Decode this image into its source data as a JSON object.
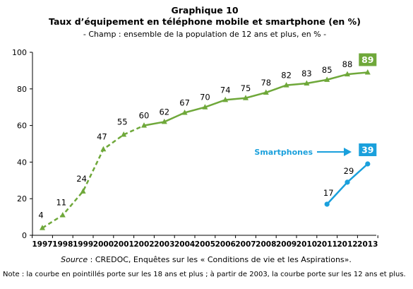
{
  "chart_data": {
    "type": "line",
    "title": "Graphique 10",
    "subtitle": "Taux d’équipement en téléphone mobile et smartphone (en %)",
    "scope": "- Champ : ensemble de la population de 12 ans et plus, en % -",
    "source_label": "Source",
    "source_text": " : CREDOC, Enquêtes sur les « Conditions de vie et les Aspirations».",
    "note": "Note : la courbe en pointillés porte sur les 18 ans et plus ; à partir de 2003, la courbe porte sur les 12 ans et plus.",
    "x": [
      "1997",
      "1998",
      "1999",
      "2000",
      "2001",
      "2002",
      "2003",
      "2004",
      "2005",
      "2006",
      "2007",
      "2008",
      "2009",
      "2010",
      "2011",
      "2012",
      "2013"
    ],
    "ylim": [
      0,
      100
    ],
    "yticks": [
      0,
      20,
      40,
      60,
      80,
      100
    ],
    "grid": false,
    "series": [
      {
        "values": [
          4,
          11,
          24,
          47,
          55,
          60,
          62,
          67,
          70,
          74,
          75,
          78,
          82,
          83,
          85,
          88,
          89
        ],
        "labels": [
          "4",
          "11",
          "24",
          "47",
          "55",
          "60",
          "62",
          "67",
          "70",
          "74",
          "75",
          "78",
          "82",
          "83",
          "85",
          "88",
          "89"
        ],
        "color": "#6fa83a",
        "marker": "triangle",
        "dashed_until_year": "2003",
        "badge": "89"
      },
      {
        "name": "Smartphones",
        "values": [
          null,
          null,
          null,
          null,
          null,
          null,
          null,
          null,
          null,
          null,
          null,
          null,
          null,
          null,
          17,
          29,
          39
        ],
        "labels": [
          "",
          "",
          "",
          "",
          "",
          "",
          "",
          "",
          "",
          "",
          "",
          "",
          "",
          "",
          "17",
          "29",
          "39"
        ],
        "color": "#1aa0dc",
        "marker": "circle",
        "badge": "39"
      }
    ]
  }
}
